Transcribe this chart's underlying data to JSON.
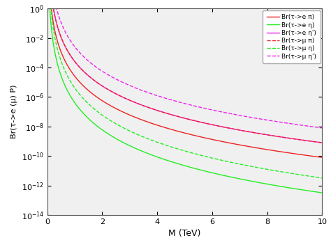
{
  "xlabel": "M (TeV)",
  "ylabel": "Br(τ->e (μ) P)",
  "xlim": [
    0,
    10
  ],
  "ylim": [
    1e-14,
    1.0
  ],
  "legend_labels": [
    "Br(τ->e π)",
    "Br(τ->e η)",
    "Br(τ->e η')",
    "Br(τ->μ π)",
    "Br(τ->μ η)",
    "Br(τ->μ η')"
  ],
  "curves": [
    {
      "color": "#ff3333",
      "ls": "-",
      "A": 0.0005,
      "n": 4.5,
      "b": 0.55
    },
    {
      "color": "#33ff33",
      "ls": "-",
      "A": 0.0001,
      "n": 4.5,
      "b": 0.65
    },
    {
      "color": "#ff33ff",
      "ls": "-",
      "A": 0.002,
      "n": 4.5,
      "b": 0.55
    },
    {
      "color": "#ff3333",
      "ls": "--",
      "A": 0.005,
      "n": 4.5,
      "b": 0.55
    },
    {
      "color": "#33ff33",
      "ls": "--",
      "A": 0.001,
      "n": 4.5,
      "b": 0.65
    },
    {
      "color": "#ff33ff",
      "ls": "--",
      "A": 0.02,
      "n": 4.5,
      "b": 0.55
    }
  ],
  "figsize": [
    4.74,
    3.55
  ],
  "dpi": 100
}
